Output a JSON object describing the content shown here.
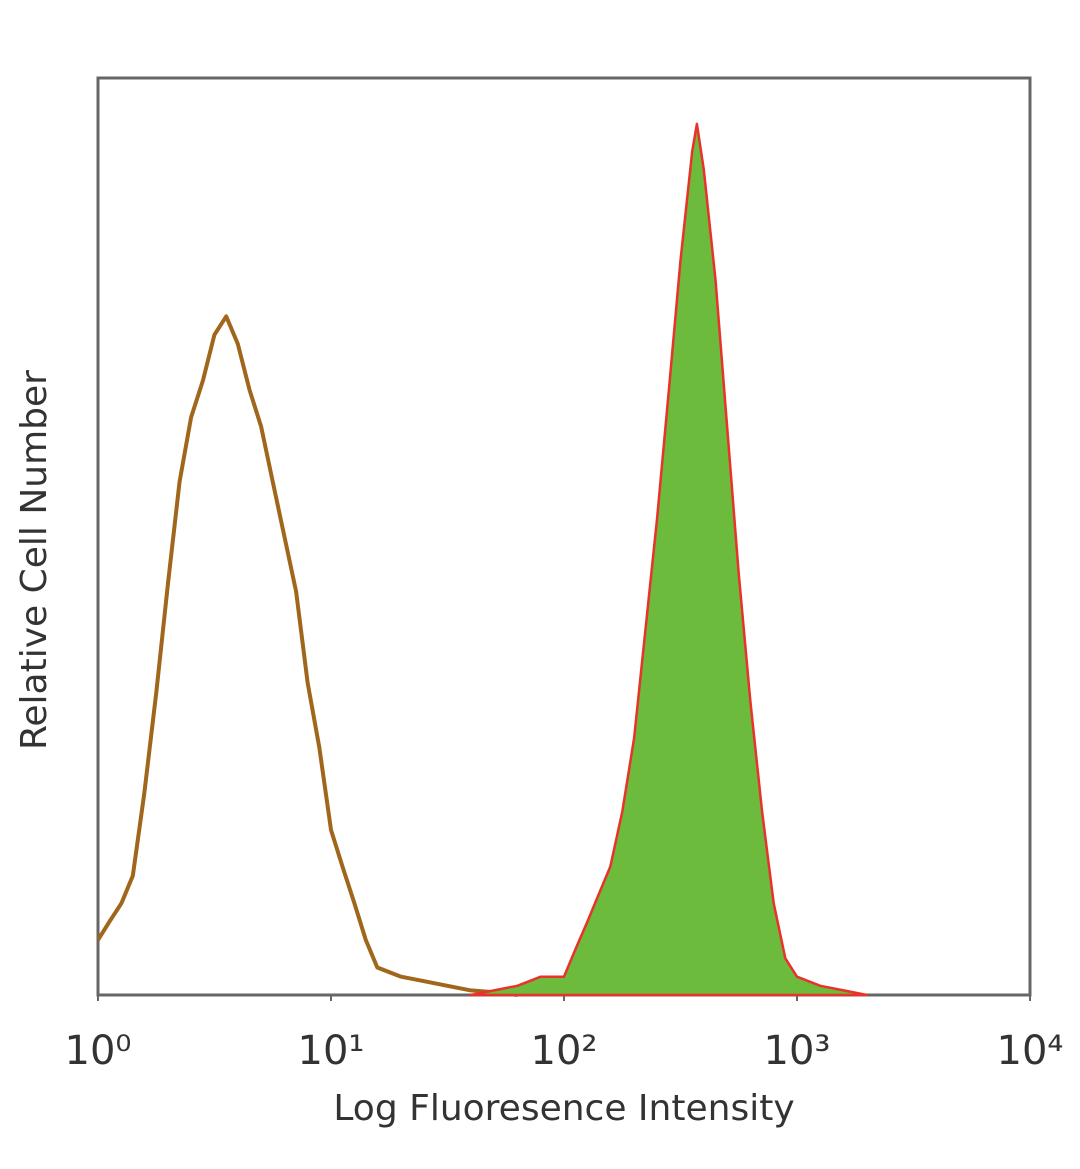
{
  "chart_data": {
    "type": "line",
    "xlabel": "Log Fluoresence Intensity",
    "ylabel": "Relative Cell Number",
    "xscale": "log",
    "xlim": [
      1,
      10000
    ],
    "xticks": [
      {
        "value": 1,
        "label": "10⁰"
      },
      {
        "value": 10,
        "label": "10¹"
      },
      {
        "value": 100,
        "label": "10²"
      },
      {
        "value": 1000,
        "label": "10³"
      },
      {
        "value": 10000,
        "label": "10⁴"
      }
    ],
    "ylim": [
      0,
      100
    ],
    "series": [
      {
        "color": "#a0661c",
        "fill": null,
        "x": [
          1,
          1.12,
          1.26,
          1.41,
          1.58,
          1.78,
          2,
          2.24,
          2.51,
          2.82,
          3.16,
          3.55,
          3.98,
          4.47,
          5.01,
          5.62,
          6.31,
          7.08,
          7.94,
          8.91,
          10,
          11.2,
          12.6,
          14.1,
          15.8,
          20,
          25.1,
          31.6,
          39.8,
          50.1,
          63.1
        ],
        "values": [
          6,
          8,
          10,
          13,
          22,
          33,
          45,
          56,
          63,
          67,
          72,
          74,
          71,
          66,
          62,
          56,
          50,
          44,
          34,
          27,
          18,
          14,
          10,
          6,
          3,
          2,
          1.5,
          1,
          0.5,
          0.3,
          0
        ]
      },
      {
        "color": "#e8322a",
        "fill": "#6cbb3c",
        "x": [
          39.8,
          50.1,
          63.1,
          79.4,
          100,
          112,
          126,
          141,
          158,
          178,
          200,
          224,
          251,
          282,
          316,
          355,
          372,
          398,
          447,
          501,
          562,
          631,
          708,
          794,
          891,
          1000,
          1259,
          1585,
          1995
        ],
        "values": [
          0,
          0.5,
          1,
          2,
          2,
          5,
          8,
          11,
          14,
          20,
          28,
          40,
          52,
          66,
          80,
          92,
          95,
          90,
          78,
          62,
          46,
          32,
          20,
          10,
          4,
          2,
          1,
          0.5,
          0
        ]
      }
    ]
  }
}
